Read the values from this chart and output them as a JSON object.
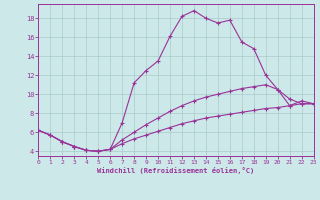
{
  "xlabel": "Windchill (Refroidissement éolien,°C)",
  "bg": "#cce8e8",
  "grid_color": "#aacccc",
  "lc": "#993399",
  "xlim": [
    0,
    23
  ],
  "ylim": [
    3.5,
    19.5
  ],
  "xticks": [
    0,
    1,
    2,
    3,
    4,
    5,
    6,
    7,
    8,
    9,
    10,
    11,
    12,
    13,
    14,
    15,
    16,
    17,
    18,
    19,
    20,
    21,
    22,
    23
  ],
  "yticks": [
    4,
    6,
    8,
    10,
    12,
    14,
    16,
    18
  ],
  "s1_x": [
    0,
    1,
    2,
    3,
    4,
    5,
    6,
    7,
    8,
    9,
    10,
    11,
    12,
    13,
    14,
    15,
    16,
    17,
    18,
    19,
    20,
    21,
    22,
    23
  ],
  "s1_y": [
    6.2,
    5.7,
    5.0,
    4.5,
    4.1,
    4.0,
    4.2,
    7.0,
    11.2,
    12.5,
    13.5,
    16.1,
    18.2,
    18.8,
    18.0,
    17.5,
    17.8,
    15.5,
    14.8,
    12.0,
    10.5,
    9.5,
    9.0,
    9.0
  ],
  "s2_x": [
    0,
    1,
    2,
    3,
    4,
    5,
    6,
    7,
    8,
    9,
    10,
    11,
    12,
    13,
    14,
    15,
    16,
    17,
    18,
    19,
    20,
    21,
    22,
    23
  ],
  "s2_y": [
    6.2,
    5.7,
    5.0,
    4.5,
    4.1,
    4.0,
    4.2,
    5.2,
    6.0,
    6.8,
    7.5,
    8.2,
    8.8,
    9.3,
    9.7,
    10.0,
    10.3,
    10.6,
    10.8,
    11.0,
    10.5,
    8.8,
    9.3,
    9.0
  ],
  "s3_x": [
    0,
    1,
    2,
    3,
    4,
    5,
    6,
    7,
    8,
    9,
    10,
    11,
    12,
    13,
    14,
    15,
    16,
    17,
    18,
    19,
    20,
    21,
    22,
    23
  ],
  "s3_y": [
    6.2,
    5.7,
    5.0,
    4.5,
    4.1,
    4.0,
    4.2,
    4.8,
    5.3,
    5.7,
    6.1,
    6.5,
    6.9,
    7.2,
    7.5,
    7.7,
    7.9,
    8.1,
    8.3,
    8.5,
    8.6,
    8.8,
    9.0,
    9.0
  ]
}
